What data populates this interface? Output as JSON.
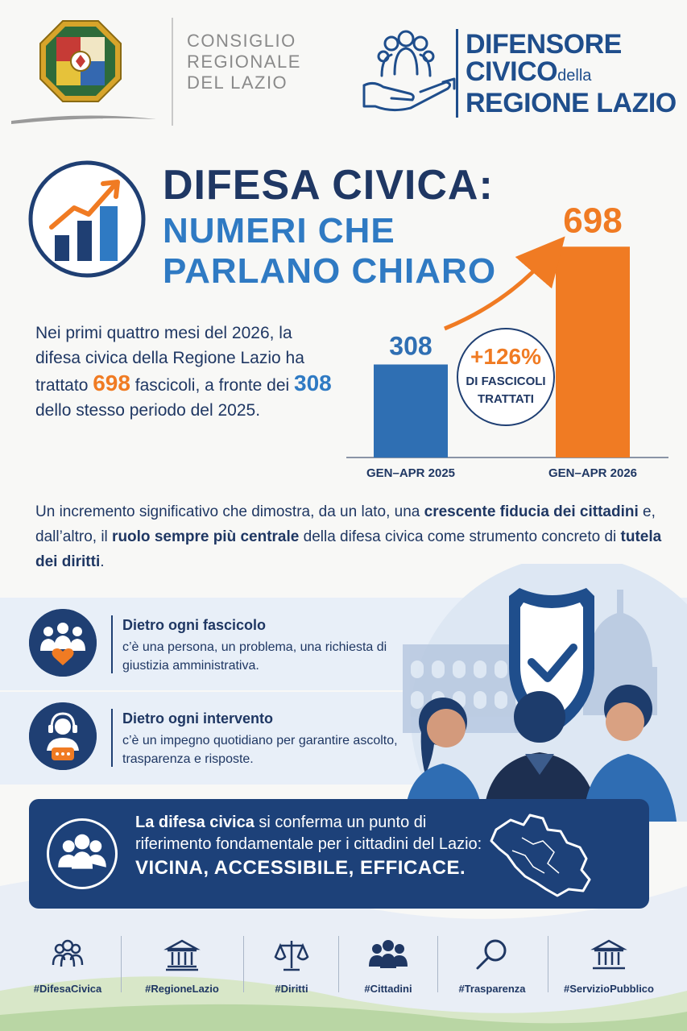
{
  "header": {
    "consiglio_lines": [
      "CONSIGLIO",
      "REGIONALE",
      "DEL LAZIO"
    ],
    "difensore_line1": "DIFENSORE",
    "difensore_line2": "CIVICO",
    "difensore_della": "della",
    "difensore_line3": "REGIONE LAZIO",
    "crest_icon": "regional-crest-icon",
    "difensore_icon": "people-in-hand-icon"
  },
  "title": {
    "line1": "DIFESA CIVICA:",
    "line2": "NUMERI CHE",
    "line3": "PARLANO CHIARO",
    "icon": "growth-chart-icon"
  },
  "intro": {
    "part1": "Nei primi quattro mesi del 2026, la difesa civica della Regione Lazio ha trattato ",
    "value_2026": "698",
    "part2": " fascicoli, a fronte dei ",
    "value_2025": "308",
    "part3": " dello stesso periodo del 2025."
  },
  "chart_data": {
    "type": "bar",
    "categories": [
      "GEN–APR 2025",
      "GEN–APR 2026"
    ],
    "values": [
      308,
      698
    ],
    "value_labels": [
      "308",
      "698"
    ],
    "colors": [
      "#2f6fb3",
      "#f07b23"
    ],
    "growth_label": "+126%",
    "growth_caption": [
      "DI FASCICOLI",
      "TRATTATI"
    ],
    "title": "",
    "xlabel": "",
    "ylabel": "",
    "ylim": [
      0,
      800
    ],
    "grid": false
  },
  "conclusion": {
    "t1": "Un incremento significativo che dimostra, da un lato, una ",
    "b1": "crescente fiducia dei cittadini",
    "t2": " e, dall’altro, il ",
    "b2": "ruolo sempre più centrale",
    "t3": " della difesa civica come strumento concreto di ",
    "b3": "tutela dei diritti",
    "t4": "."
  },
  "info": [
    {
      "title": "Dietro ogni fascicolo",
      "body": "c’è una persona, un problema, una richiesta di giustizia amministrativa.",
      "icon": "people-heart-icon"
    },
    {
      "title": "Dietro ogni intervento",
      "body": "c’è un impegno quotidiano per garantire ascolto, trasparenza e risposte.",
      "icon": "headset-operator-icon"
    }
  ],
  "summary": {
    "bold": "La difesa civica",
    "text": " si conferma un punto di riferimento fondamentale per i cittadini del Lazio:",
    "motto": "VICINA, ACCESSIBILE, EFFICACE.",
    "icon": "citizens-group-icon",
    "map_icon": "lazio-map-icon"
  },
  "footer_tags": [
    {
      "label": "#DifesaCivica",
      "icon": "people-outline-icon"
    },
    {
      "label": "#RegioneLazio",
      "icon": "institution-building-icon"
    },
    {
      "label": "#Diritti",
      "icon": "scales-icon"
    },
    {
      "label": "#Cittadini",
      "icon": "group-icon"
    },
    {
      "label": "#Trasparenza",
      "icon": "magnifier-icon"
    },
    {
      "label": "#ServizioPubblico",
      "icon": "public-building-icon"
    }
  ],
  "colors": {
    "navy": "#1f3763",
    "blue": "#2f7ac3",
    "orange": "#f07b23",
    "banner": "#1d4179"
  }
}
